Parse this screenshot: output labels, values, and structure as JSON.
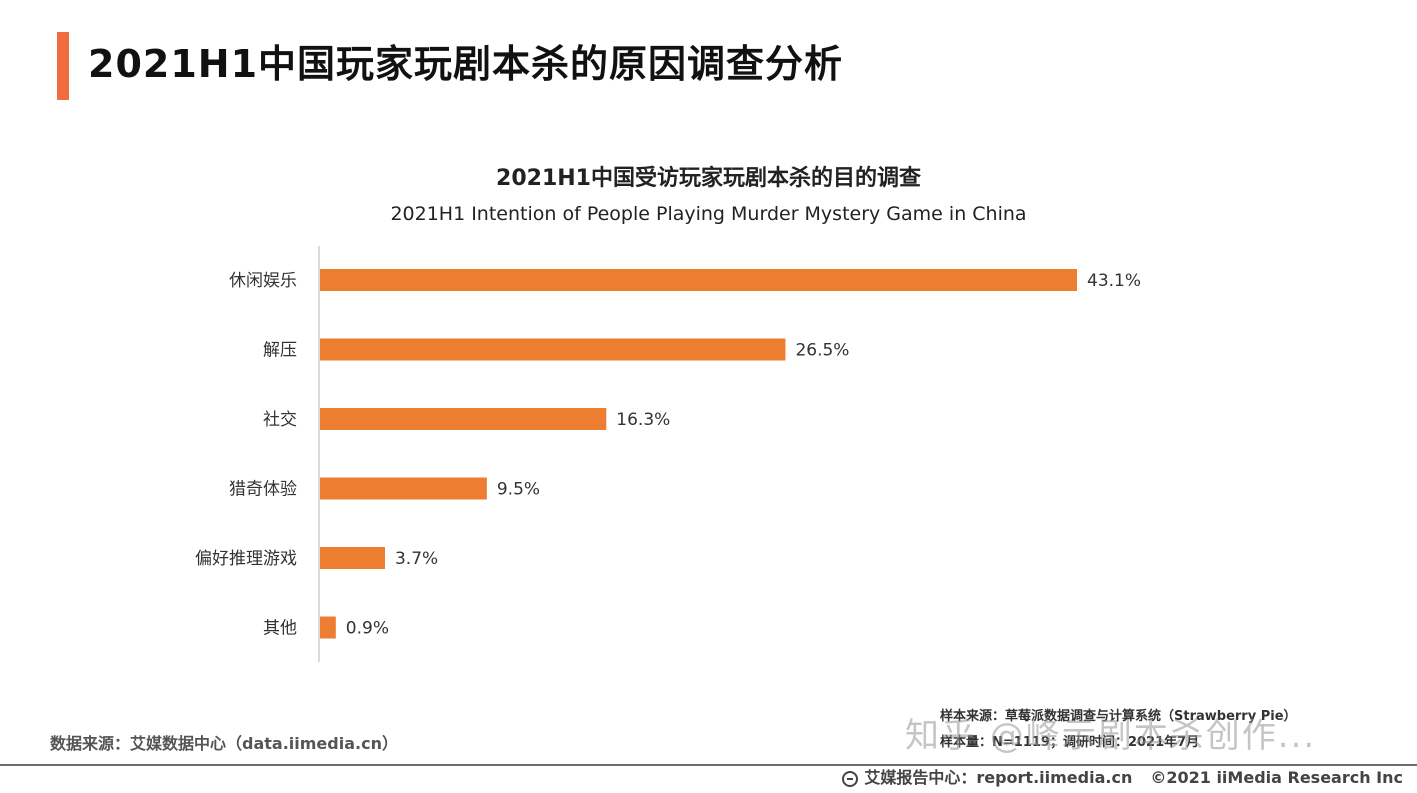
{
  "page": {
    "title": "2021H1中国玩家玩剧本杀的原因调查分析",
    "accent_color": "#f26d3d"
  },
  "chart_data": {
    "type": "bar",
    "orientation": "horizontal",
    "title": "2021H1中国受访玩家玩剧本杀的目的调查",
    "subtitle": "2021H1 Intention of People Playing Murder Mystery Game in China",
    "categories": [
      "休闲娱乐",
      "解压",
      "社交",
      "猎奇体验",
      "偏好推理游戏",
      "其他"
    ],
    "values": [
      43.1,
      26.5,
      16.3,
      9.5,
      3.7,
      0.9
    ],
    "value_labels": [
      "43.1%",
      "26.5%",
      "16.3%",
      "9.5%",
      "3.7%",
      "0.9%"
    ],
    "xlim": [
      0,
      43.1
    ],
    "bar_color": "#ed7d31",
    "grid": false,
    "legend": "none"
  },
  "sources": {
    "data_source": "数据来源：艾媒数据中心（data.iimedia.cn）",
    "sample_source": "样本来源：草莓派数据调查与计算系统（Strawberry Pie）",
    "sample_size": "样本量：N=1119；调研时间：2021年7月"
  },
  "watermark": "知乎 @峰示剧本杀创作...",
  "footer": {
    "icon": "globe-icon",
    "report_center": "艾媒报告中心：report.iimedia.cn",
    "copyright": "©2021  iiMedia Research  Inc"
  }
}
